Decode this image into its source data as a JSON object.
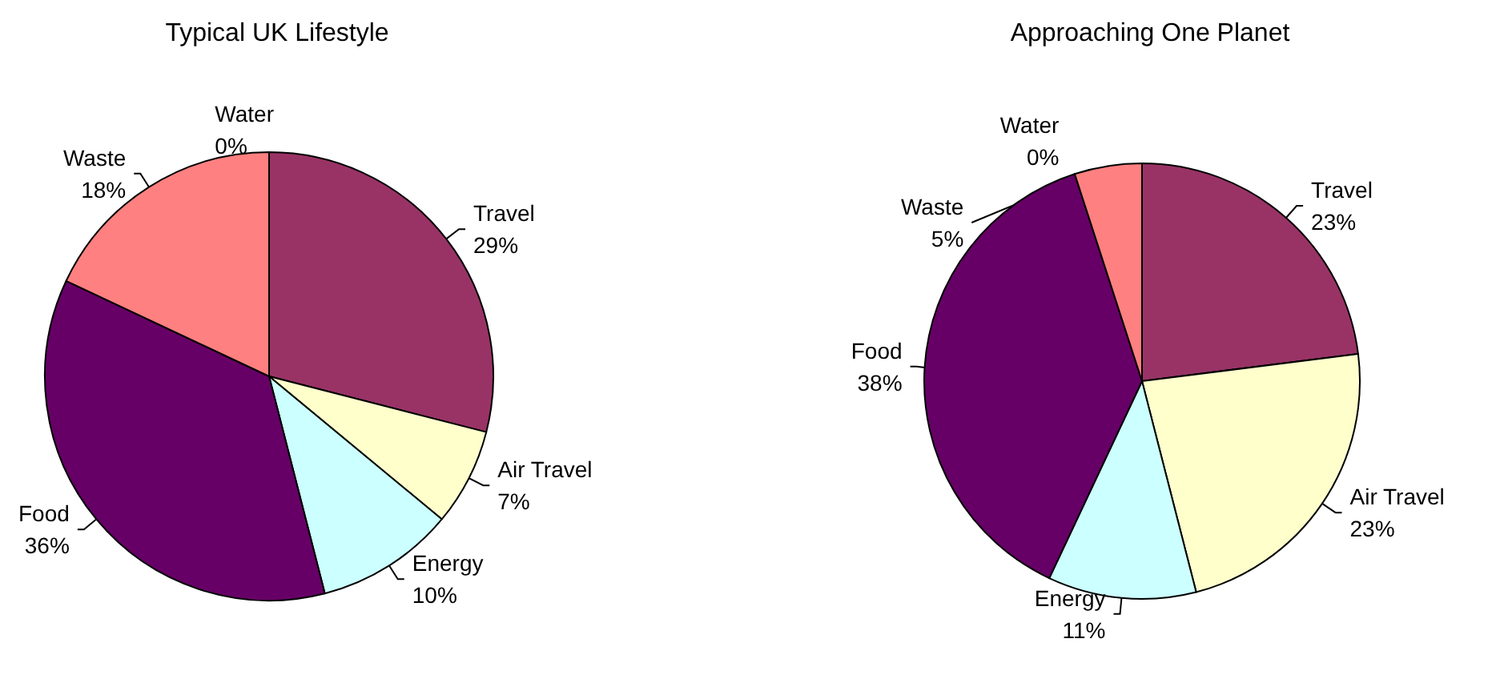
{
  "chart_data": [
    {
      "type": "pie",
      "title": "Typical UK Lifestyle",
      "categories": [
        "Travel",
        "Air Travel",
        "Energy",
        "Food",
        "Waste",
        "Water"
      ],
      "values": [
        29,
        7,
        10,
        36,
        18,
        0
      ],
      "value_labels": [
        "29%",
        "7%",
        "10%",
        "36%",
        "18%",
        "0%"
      ],
      "colors": [
        "#993366",
        "#ffffcc",
        "#ccffff",
        "#660066",
        "#ff8080",
        "#0066cc"
      ]
    },
    {
      "type": "pie",
      "title": "Approaching One Planet",
      "categories": [
        "Travel",
        "Air Travel",
        "Energy",
        "Food",
        "Waste",
        "Water"
      ],
      "values": [
        23,
        23,
        11,
        38,
        5,
        0
      ],
      "value_labels": [
        "23%",
        "23%",
        "11%",
        "38%",
        "5%",
        "0%"
      ],
      "colors": [
        "#993366",
        "#ffffcc",
        "#ccffff",
        "#660066",
        "#ff8080",
        "#0066cc"
      ]
    }
  ]
}
